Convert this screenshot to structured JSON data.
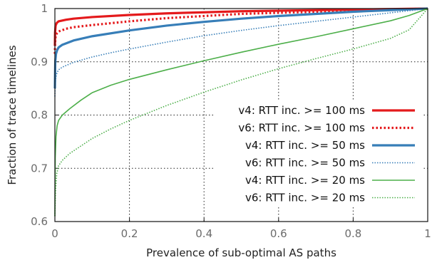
{
  "chart_data": {
    "type": "line",
    "title": "",
    "xlabel": "Prevalence of sub-optimal AS paths",
    "ylabel": "Fraction of trace timelines",
    "xlim": [
      0,
      1
    ],
    "ylim": [
      0.6,
      1
    ],
    "xticks": [
      "0",
      "0.2",
      "0.4",
      "0.6",
      "0.8",
      "1"
    ],
    "yticks": [
      "0.6",
      "0.7",
      "0.8",
      "0.9",
      "1"
    ],
    "grid": true,
    "legend_position": "inside-right",
    "series": [
      {
        "name": "v4: RTT inc. >= 100 ms",
        "color": "#e41a1c",
        "style": "solid",
        "width": "thick",
        "x": [
          0,
          0.0005,
          0.002,
          0.005,
          0.01,
          0.03,
          0.05,
          0.1,
          0.2,
          0.3,
          0.4,
          0.5,
          0.6,
          0.7,
          0.8,
          0.9,
          1.0
        ],
        "y": [
          0.93,
          0.955,
          0.968,
          0.973,
          0.976,
          0.979,
          0.981,
          0.984,
          0.988,
          0.991,
          0.993,
          0.995,
          0.996,
          0.997,
          0.998,
          0.999,
          1.0
        ]
      },
      {
        "name": "v6: RTT inc. >= 100 ms",
        "color": "#e41a1c",
        "style": "dotted",
        "width": "thick",
        "x": [
          0,
          0.0005,
          0.002,
          0.005,
          0.01,
          0.03,
          0.05,
          0.1,
          0.2,
          0.3,
          0.4,
          0.5,
          0.6,
          0.7,
          0.8,
          0.9,
          1.0
        ],
        "y": [
          0.915,
          0.935,
          0.948,
          0.953,
          0.957,
          0.962,
          0.965,
          0.969,
          0.976,
          0.982,
          0.986,
          0.99,
          0.992,
          0.994,
          0.996,
          0.998,
          1.0
        ]
      },
      {
        "name": "v4: RTT inc. >= 50 ms",
        "color": "#377eb8",
        "style": "solid",
        "width": "thick",
        "x": [
          0,
          0.001,
          0.003,
          0.006,
          0.01,
          0.02,
          0.05,
          0.1,
          0.2,
          0.3,
          0.4,
          0.5,
          0.6,
          0.7,
          0.8,
          0.9,
          1.0
        ],
        "y": [
          0.85,
          0.9,
          0.915,
          0.922,
          0.927,
          0.932,
          0.94,
          0.948,
          0.959,
          0.968,
          0.975,
          0.981,
          0.986,
          0.99,
          0.994,
          0.997,
          1.0
        ]
      },
      {
        "name": "v6: RTT inc. >= 50 ms",
        "color": "#377eb8",
        "style": "dotted",
        "width": "thin",
        "x": [
          0,
          0.001,
          0.003,
          0.006,
          0.01,
          0.02,
          0.05,
          0.1,
          0.15,
          0.2,
          0.3,
          0.4,
          0.5,
          0.6,
          0.7,
          0.8,
          0.9,
          1.0
        ],
        "y": [
          0.835,
          0.86,
          0.872,
          0.88,
          0.885,
          0.89,
          0.899,
          0.909,
          0.917,
          0.924,
          0.937,
          0.949,
          0.959,
          0.968,
          0.976,
          0.984,
          0.992,
          1.0
        ]
      },
      {
        "name": "v4: RTT inc. >= 20 ms",
        "color": "#4daf4a",
        "style": "solid",
        "width": "thin",
        "x": [
          0,
          0.001,
          0.003,
          0.006,
          0.01,
          0.02,
          0.04,
          0.07,
          0.1,
          0.15,
          0.2,
          0.3,
          0.4,
          0.5,
          0.6,
          0.7,
          0.8,
          0.9,
          0.95,
          1.0
        ],
        "y": [
          0.61,
          0.72,
          0.76,
          0.78,
          0.79,
          0.8,
          0.812,
          0.828,
          0.842,
          0.856,
          0.867,
          0.885,
          0.902,
          0.918,
          0.933,
          0.947,
          0.962,
          0.977,
          0.987,
          1.0
        ]
      },
      {
        "name": "v6: RTT inc. >= 20 ms",
        "color": "#4daf4a",
        "style": "dotted",
        "width": "thin",
        "x": [
          0,
          0.002,
          0.005,
          0.01,
          0.02,
          0.04,
          0.07,
          0.1,
          0.15,
          0.2,
          0.3,
          0.4,
          0.5,
          0.6,
          0.7,
          0.8,
          0.9,
          0.95,
          1.0
        ],
        "y": [
          0.61,
          0.66,
          0.69,
          0.705,
          0.715,
          0.728,
          0.742,
          0.756,
          0.774,
          0.79,
          0.818,
          0.843,
          0.866,
          0.887,
          0.906,
          0.924,
          0.944,
          0.96,
          1.0
        ]
      }
    ]
  }
}
